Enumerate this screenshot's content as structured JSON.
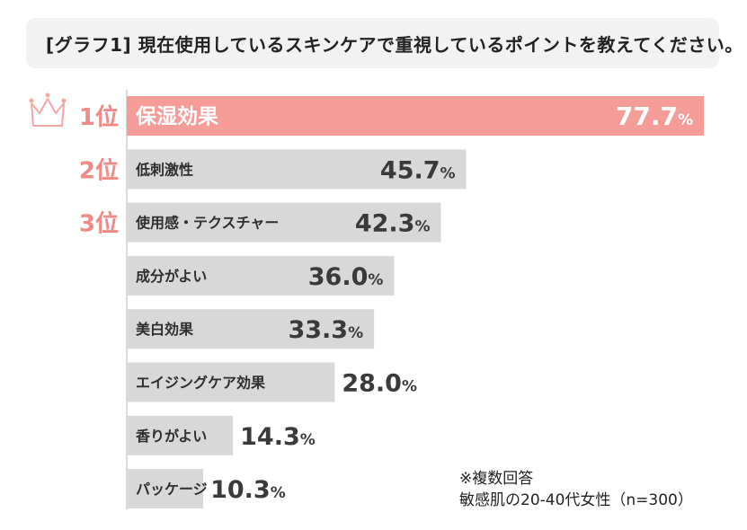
{
  "title": "[グラフ1] 現在使用しているスキンケアで重視しているポイントを教えてください。",
  "chart_data": {
    "type": "bar",
    "orientation": "horizontal",
    "title": "[グラフ1] 現在使用しているスキンケアで重視しているポイントを教えてください。",
    "unit": "%",
    "xlim": [
      0,
      80
    ],
    "categories": [
      "保湿効果",
      "低刺激性",
      "使用感・テクスチャー",
      "成分がよい",
      "美白効果",
      "エイジングケア効果",
      "香りがよい",
      "パッケージ"
    ],
    "values": [
      77.7,
      45.7,
      42.3,
      36.0,
      33.3,
      28.0,
      14.3,
      10.3
    ],
    "ranks": [
      "1位",
      "2位",
      "3位"
    ],
    "colors": {
      "highlight": "#f59b98",
      "default": "#d9d8d8",
      "rank": "#ef8a86",
      "value_text": "#3a3a3a"
    }
  },
  "note": {
    "line1": "※複数回答",
    "line2": "敏感肌の20-40代女性（n=300）"
  }
}
